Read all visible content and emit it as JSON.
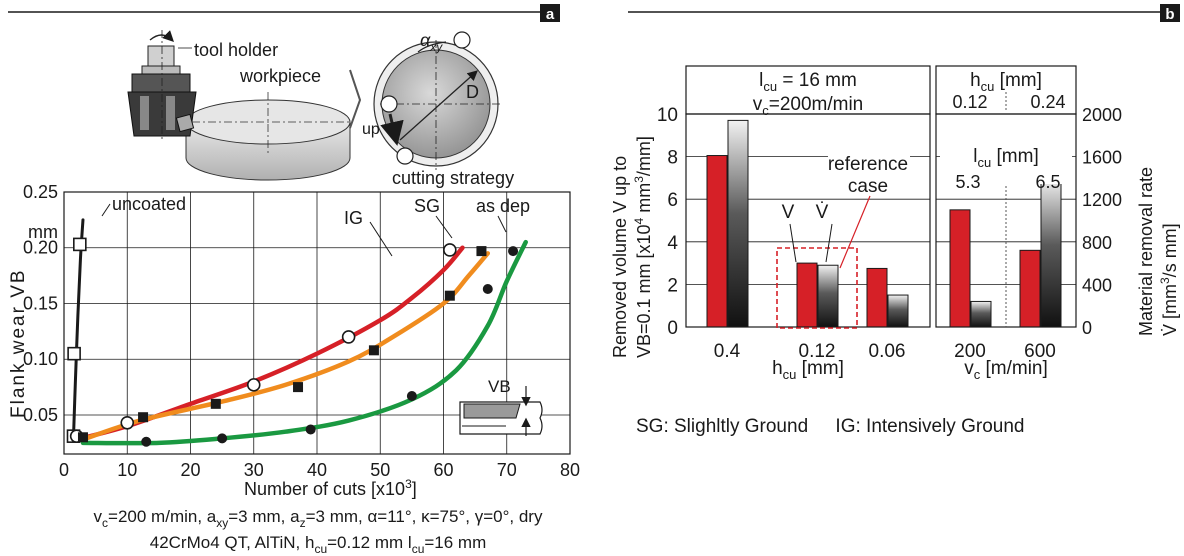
{
  "panel_labels": {
    "a": "a",
    "b": "b"
  },
  "illustration": {
    "tool_holder": "tool holder",
    "workpiece": "workpiece",
    "alpha": "α",
    "alpha_sub": "xy",
    "diameter": "D",
    "up": "up",
    "strategy": "cutting strategy"
  },
  "inset_label": "VB",
  "chart_data": [
    {
      "type": "line",
      "xlabel": "Number of cuts [x10",
      "xlabel_sup": "3",
      "xlabel_end": "]",
      "ylabel": "Flank wear VB",
      "yunit": "mm",
      "xlim": [
        0,
        80
      ],
      "ylim": [
        0.015,
        0.25
      ],
      "xticks": [
        "0",
        "10",
        "20",
        "30",
        "40",
        "50",
        "60",
        "70",
        "80"
      ],
      "xtick_values": [
        0,
        10,
        20,
        30,
        40,
        50,
        60,
        70,
        80
      ],
      "yticks": [
        "0.05",
        "0.10",
        "0.15",
        "0.20",
        "0.25"
      ],
      "ytick_values": [
        0.05,
        0.1,
        0.15,
        0.2,
        0.25
      ],
      "grid": true,
      "series": [
        {
          "name": "uncoated",
          "color": "#1a1a1a",
          "marker": "open-square",
          "line": [
            [
              1.5,
              0.03
            ],
            [
              1.8,
              0.08
            ],
            [
              2.2,
              0.14
            ],
            [
              2.6,
              0.19
            ],
            [
              3.0,
              0.225
            ]
          ],
          "points": [
            [
              1.5,
              0.031
            ],
            [
              1.6,
              0.105
            ],
            [
              2.5,
              0.203
            ]
          ]
        },
        {
          "name": "IG",
          "color": "#d62027",
          "marker": "open-circle",
          "line": [
            [
              2,
              0.028
            ],
            [
              10,
              0.04
            ],
            [
              20,
              0.06
            ],
            [
              30,
              0.08
            ],
            [
              40,
              0.105
            ],
            [
              50,
              0.135
            ],
            [
              55,
              0.155
            ],
            [
              60,
              0.18
            ],
            [
              63,
              0.2
            ]
          ],
          "points": [
            [
              2,
              0.031
            ],
            [
              10,
              0.043
            ],
            [
              30,
              0.077
            ],
            [
              45,
              0.12
            ],
            [
              61,
              0.198
            ]
          ]
        },
        {
          "name": "SG",
          "color": "#f08c1e",
          "marker": "filled-square",
          "line": [
            [
              3,
              0.028
            ],
            [
              12,
              0.045
            ],
            [
              25,
              0.062
            ],
            [
              35,
              0.077
            ],
            [
              45,
              0.098
            ],
            [
              52,
              0.12
            ],
            [
              60,
              0.15
            ],
            [
              64,
              0.175
            ],
            [
              67,
              0.195
            ]
          ],
          "points": [
            [
              3,
              0.03
            ],
            [
              12.5,
              0.048
            ],
            [
              24,
              0.06
            ],
            [
              37,
              0.075
            ],
            [
              49,
              0.108
            ],
            [
              61,
              0.157
            ],
            [
              66,
              0.197
            ]
          ]
        },
        {
          "name": "as dep",
          "color": "#1a9941",
          "marker": "filled-circle",
          "line": [
            [
              3,
              0.025
            ],
            [
              15,
              0.025
            ],
            [
              25,
              0.029
            ],
            [
              35,
              0.035
            ],
            [
              45,
              0.045
            ],
            [
              55,
              0.064
            ],
            [
              62,
              0.09
            ],
            [
              67,
              0.13
            ],
            [
              70,
              0.17
            ],
            [
              73,
              0.205
            ]
          ],
          "points": [
            [
              13,
              0.026
            ],
            [
              25,
              0.029
            ],
            [
              39,
              0.037
            ],
            [
              55,
              0.067
            ],
            [
              67,
              0.163
            ],
            [
              71,
              0.197
            ]
          ]
        }
      ],
      "annotations": [
        "uncoated",
        "IG",
        "SG",
        "as dep"
      ],
      "conditions": [
        {
          "parts": [
            [
              "v",
              ""
            ],
            [
              "c",
              "sub"
            ],
            [
              "=200 m/min, a",
              ""
            ],
            [
              "xy",
              "sub"
            ],
            [
              "=3 mm, a",
              ""
            ],
            [
              "z",
              "sub"
            ],
            [
              "=3 mm, α=11°, κ=75°, γ=0°, dry",
              ""
            ]
          ]
        },
        {
          "parts": [
            [
              "42CrMo4 QT, AlTiN, h",
              ""
            ],
            [
              "cu",
              "sub"
            ],
            [
              "=0.12 mm l",
              ""
            ],
            [
              "cu",
              "sub"
            ],
            [
              "=16 mm",
              ""
            ]
          ]
        }
      ]
    },
    {
      "type": "bar",
      "ylabel_left_1": "Removed volume  V up to",
      "ylabel_left_2": "VB=0.1 mm [x10",
      "ylabel_left_2_sup": "4",
      "ylabel_left_2_end": " mm",
      "ylabel_left_2_sup2": "3",
      "ylabel_left_2_tail": "/mm]",
      "ylabel_right_1": "Material removal rate",
      "ylabel_right_2": "V̇ [mm",
      "ylabel_right_2_sup": "3",
      "ylabel_right_2_tail": "/s mm]",
      "ylim": [
        0,
        10
      ],
      "ylim_right": [
        0,
        2000
      ],
      "yticks": [
        "0",
        "2",
        "4",
        "6",
        "8",
        "10"
      ],
      "ytick_values": [
        0,
        2,
        4,
        6,
        8,
        10
      ],
      "yticks_right": [
        "0",
        "400",
        "800",
        "1200",
        "1600",
        "2000"
      ],
      "ytick_right_values": [
        0,
        400,
        800,
        1200,
        1600,
        2000
      ],
      "series": [
        {
          "name": "V",
          "color": "#d62027"
        },
        {
          "name": "V̇",
          "color": "#1a1a1a"
        }
      ],
      "left_group": {
        "header": "l",
        "header_sub": "cu",
        "header_end": " = 16 mm",
        "header2": "v",
        "header2_sub": "c",
        "header2_end": "=200m/min",
        "xlabel": "h",
        "xlabel_sub": "cu",
        "xlabel_end": " [mm]",
        "categories": [
          "0.4",
          "0.12",
          "0.06"
        ],
        "values_V": [
          8.05,
          3.0,
          2.75
        ],
        "values_Vdot": [
          1940,
          580,
          300
        ]
      },
      "right_group": {
        "header": "h",
        "header_sub": "cu",
        "header_end": " [mm]",
        "header_vals": [
          "0.12",
          "0.24"
        ],
        "subheader": "l",
        "subheader_sub": "cu",
        "subheader_end": " [mm]",
        "subheader_vals": [
          "5.3",
          "6.5"
        ],
        "xlabel": "v",
        "xlabel_sub": "c",
        "xlabel_end": " [m/min]",
        "categories": [
          "200",
          "600"
        ],
        "values_V": [
          5.5,
          3.6
        ],
        "values_Vdot": [
          240,
          1400
        ]
      },
      "reference_label_1": "reference",
      "reference_label_2": "case",
      "bar_tags": [
        "V",
        "V̇"
      ]
    }
  ],
  "legend_note": {
    "sg": "SG: Slighltly Ground",
    "ig": "IG: Intensively Ground"
  }
}
